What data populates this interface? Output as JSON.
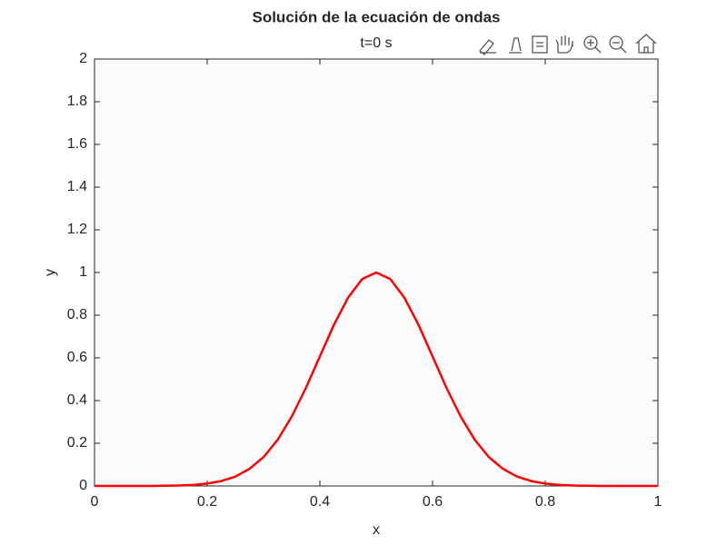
{
  "chart_data": {
    "type": "line",
    "title": "Solución de la ecuación de ondas",
    "subtitle": "t=0 s",
    "x_label": "x",
    "y_label": "y",
    "x": [
      0,
      0.025,
      0.05,
      0.075,
      0.1,
      0.125,
      0.15,
      0.175,
      0.2,
      0.225,
      0.25,
      0.275,
      0.3,
      0.325,
      0.35,
      0.375,
      0.4,
      0.425,
      0.45,
      0.475,
      0.5,
      0.525,
      0.55,
      0.575,
      0.6,
      0.625,
      0.65,
      0.675,
      0.7,
      0.725,
      0.75,
      0.775,
      0.8,
      0.825,
      0.85,
      0.875,
      0.9,
      0.925,
      0.95,
      0.975,
      1
    ],
    "values": [
      0,
      0,
      0,
      0,
      0,
      0.001,
      0.002,
      0.005,
      0.011,
      0.023,
      0.044,
      0.08,
      0.135,
      0.216,
      0.325,
      0.458,
      0.607,
      0.755,
      0.882,
      0.969,
      1,
      0.969,
      0.882,
      0.755,
      0.607,
      0.458,
      0.325,
      0.216,
      0.135,
      0.08,
      0.044,
      0.023,
      0.011,
      0.005,
      0.002,
      0.001,
      0,
      0,
      0,
      0,
      0
    ],
    "color": "#ff0000",
    "xlim": [
      0,
      1
    ],
    "xticks": [
      0,
      0.2,
      0.4,
      0.6,
      0.8,
      1
    ],
    "ylim": [
      0,
      2
    ],
    "yticks": [
      0,
      0.2,
      0.4,
      0.6,
      0.8,
      1,
      1.2,
      1.4,
      1.6,
      1.8,
      2
    ],
    "grid": false
  }
}
